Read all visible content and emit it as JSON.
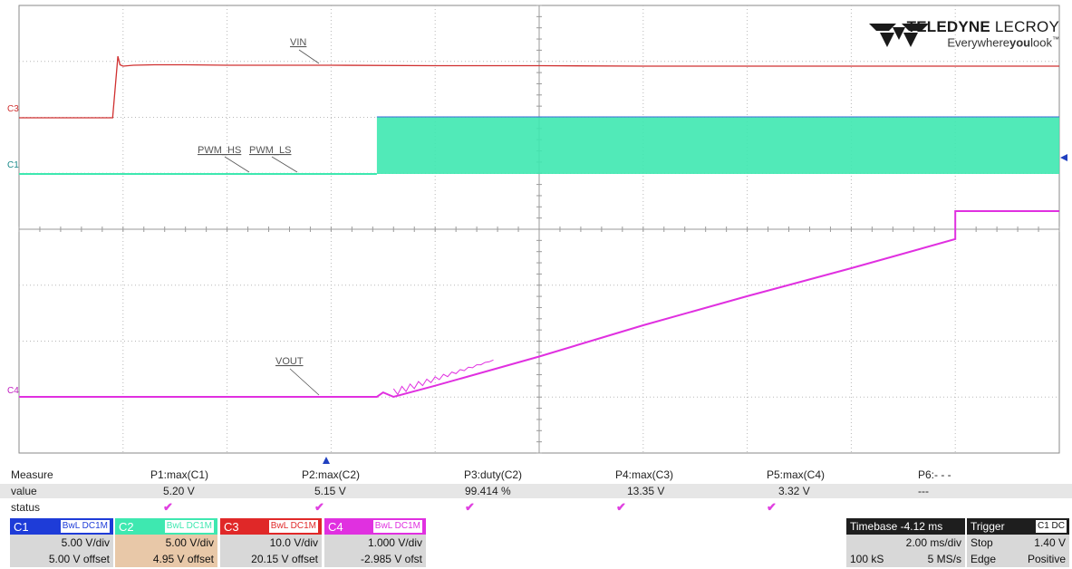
{
  "chart_data": {
    "type": "line",
    "title": "",
    "xlabel": "",
    "ylabel": "",
    "grid": true,
    "series": [
      {
        "name": "VIN",
        "channel": "C3",
        "color": "#d03030",
        "x": [
          0,
          0.9,
          0.95,
          0.97,
          1.0,
          1.1,
          1.3,
          1.6,
          2.0,
          2.5,
          3.0,
          4.0,
          5.0,
          6.0,
          7.0,
          8.0,
          9.0,
          10.0
        ],
        "y": [
          0.0,
          0.0,
          13.35,
          11.5,
          11.2,
          11.4,
          11.5,
          11.5,
          11.4,
          11.4,
          11.4,
          11.3,
          11.3,
          11.2,
          11.2,
          11.2,
          11.2,
          11.2
        ]
      },
      {
        "name": "PWM_HS PWM_LS",
        "channel": "C1/C2",
        "color": "#3ee8b0",
        "duty_percent": 99.414,
        "switching_start": 3.44,
        "x": [
          0,
          3.44,
          3.44,
          10.0
        ],
        "y": [
          0.0,
          0.0,
          5.2,
          5.2
        ]
      },
      {
        "name": "VOUT",
        "channel": "C4",
        "color": "#e030e0",
        "x": [
          0,
          3.44,
          3.5,
          3.6,
          4.0,
          5.0,
          6.0,
          7.0,
          8.0,
          9.0,
          9.0,
          10.0
        ],
        "y": [
          0.0,
          0.0,
          0.08,
          0.0,
          0.2,
          0.72,
          1.28,
          1.8,
          2.3,
          2.82,
          3.32,
          3.32
        ]
      }
    ],
    "divisions": {
      "x": 10,
      "y": 8
    }
  },
  "logo": {
    "brand_bold": "TELEDYNE",
    "brand_light": "LECROY",
    "tag_pre": "Everywhere",
    "tag_bold": "you",
    "tag_post": "look",
    "tm": "™"
  },
  "markers": {
    "c3": "C3",
    "c1": "C1",
    "c4": "C4"
  },
  "measure": {
    "headers": [
      "Measure",
      "P1:max(C1)",
      "P2:max(C2)",
      "P3:duty(C2)",
      "P4:max(C3)",
      "P5:max(C4)",
      "P6:- - -"
    ],
    "values_label": "value",
    "values": [
      "5.20 V",
      "5.15 V",
      "99.414 %",
      "13.35 V",
      "3.32 V",
      "---"
    ],
    "status_label": "status",
    "status": [
      "✔",
      "✔",
      "✔",
      "✔",
      "✔"
    ]
  },
  "channels": [
    {
      "name": "C1",
      "tags": "BwL DC1M",
      "vdiv": "5.00 V/div",
      "offset": "5.00 V offset",
      "color": "#1e3cd8",
      "body": "#d8d8d8"
    },
    {
      "name": "C2",
      "tags": "BwL DC1M",
      "vdiv": "5.00 V/div",
      "offset": "4.95 V offset",
      "color": "#3ee8b0",
      "body": "#e8c8a8"
    },
    {
      "name": "C3",
      "tags": "BwL DC1M",
      "vdiv": "10.0 V/div",
      "offset": "20.15 V offset",
      "color": "#e02828",
      "body": "#d8d8d8"
    },
    {
      "name": "C4",
      "tags": "BwL DC1M",
      "vdiv": "1.000 V/div",
      "offset": "-2.985 V ofst",
      "color": "#e030e0",
      "body": "#d8d8d8"
    }
  ],
  "timebase": {
    "label": "Timebase",
    "value": "-4.12 ms",
    "div": "2.00 ms/div",
    "samples": "100 kS",
    "rate": "5 MS/s"
  },
  "trigger": {
    "label": "Trigger",
    "tag": "C1 DC",
    "mode": "Stop",
    "level": "1.40 V",
    "type": "Edge",
    "slope": "Positive"
  }
}
